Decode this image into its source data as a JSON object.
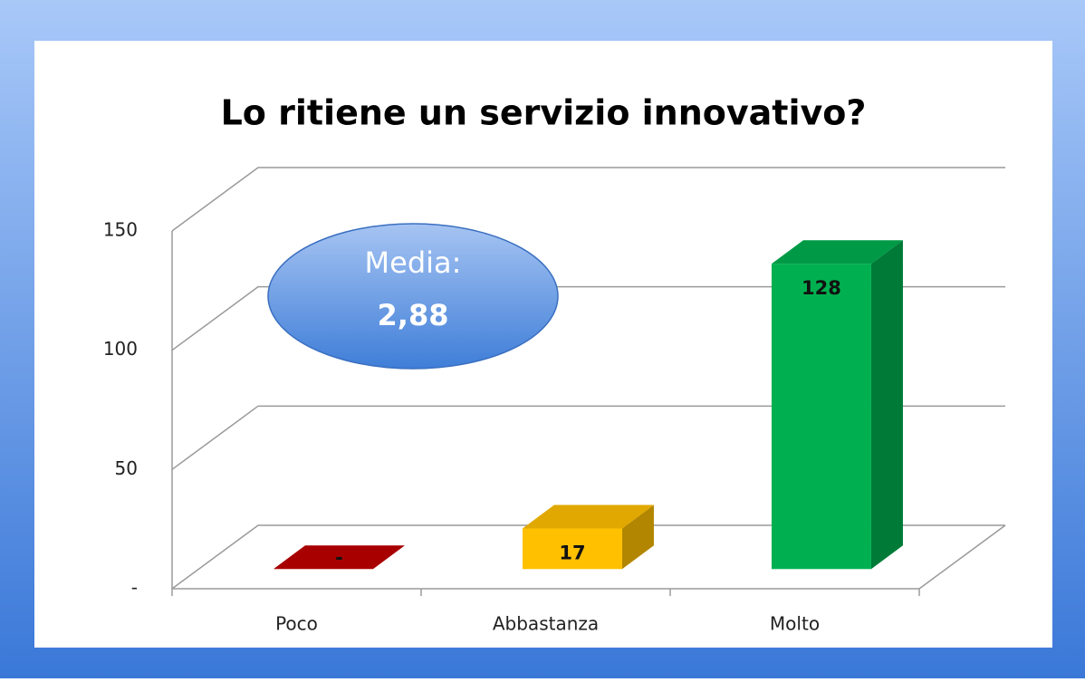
{
  "chart_data": {
    "type": "bar3d",
    "title": "Lo ritiene un servizio innovativo?",
    "categories": [
      "Poco",
      "Abbastanza",
      "Molto"
    ],
    "values": [
      0,
      17,
      128
    ],
    "value_labels": [
      "-",
      "17",
      "128"
    ],
    "colors": [
      "#c00000",
      "#ffc000",
      "#00b050"
    ],
    "ylim": [
      0,
      150
    ],
    "yticks": [
      {
        "value": 0,
        "label": "-"
      },
      50,
      100,
      150
    ],
    "grid": true,
    "annotation": [
      "Media:",
      "2,88"
    ]
  }
}
